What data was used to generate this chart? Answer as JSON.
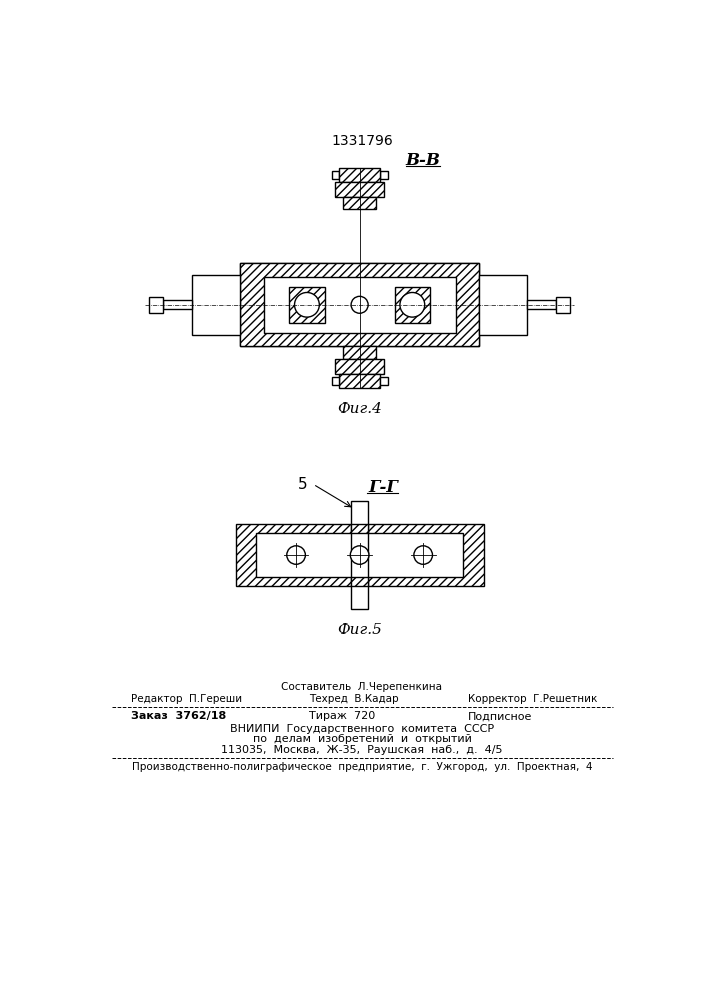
{
  "title": "1331796",
  "fig4_label": "В-В",
  "fig4_caption": "Фиг.4",
  "fig5_label": "Г-Г",
  "fig5_caption": "Фиг.5",
  "fig5_number": "5",
  "bg_color": "#ffffff",
  "line_color": "#000000"
}
